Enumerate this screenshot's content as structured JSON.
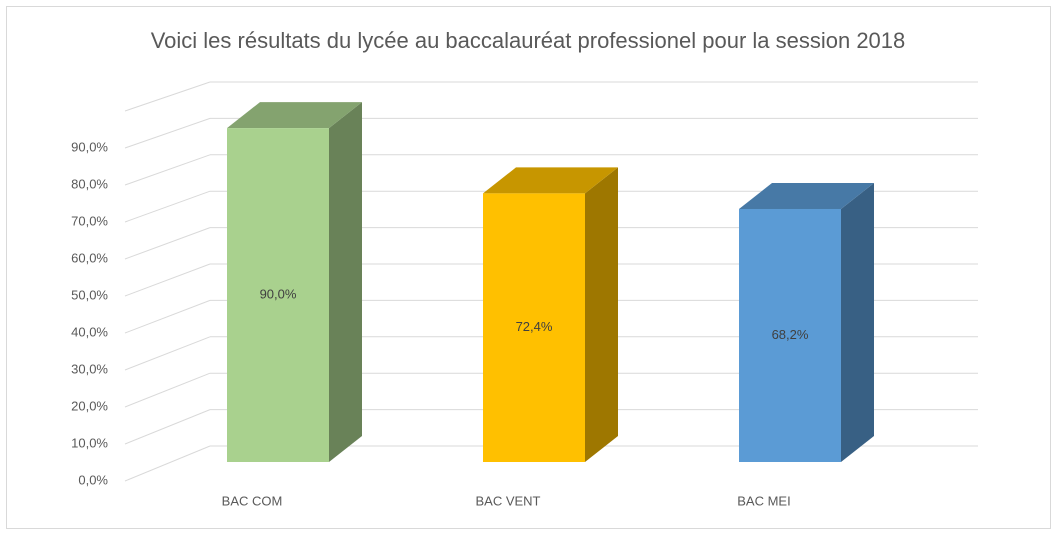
{
  "chart_data": {
    "type": "bar3d",
    "title": "Voici les résultats du lycée au baccalauréat professionel pour la session 2018",
    "categories": [
      "BAC COM",
      "BAC VENT",
      "BAC MEI"
    ],
    "values": [
      90,
      72.4,
      68.2
    ],
    "value_labels": [
      "90,0%",
      "72,4%",
      "68,2%"
    ],
    "colors": [
      "#a9d18e",
      "#ffc000",
      "#5b9bd5"
    ],
    "ylim": [
      0,
      100
    ],
    "yticks": [
      {
        "value": 0,
        "label": "0,0%"
      },
      {
        "value": 10,
        "label": "10,0%"
      },
      {
        "value": 20,
        "label": "20,0%"
      },
      {
        "value": 30,
        "label": "30,0%"
      },
      {
        "value": 40,
        "label": "40,0%"
      },
      {
        "value": 50,
        "label": "50,0%"
      },
      {
        "value": 60,
        "label": "60,0%"
      },
      {
        "value": 70,
        "label": "70,0%"
      },
      {
        "value": 80,
        "label": "80,0%"
      },
      {
        "value": 90,
        "label": "90,0%"
      }
    ],
    "grid": true
  }
}
